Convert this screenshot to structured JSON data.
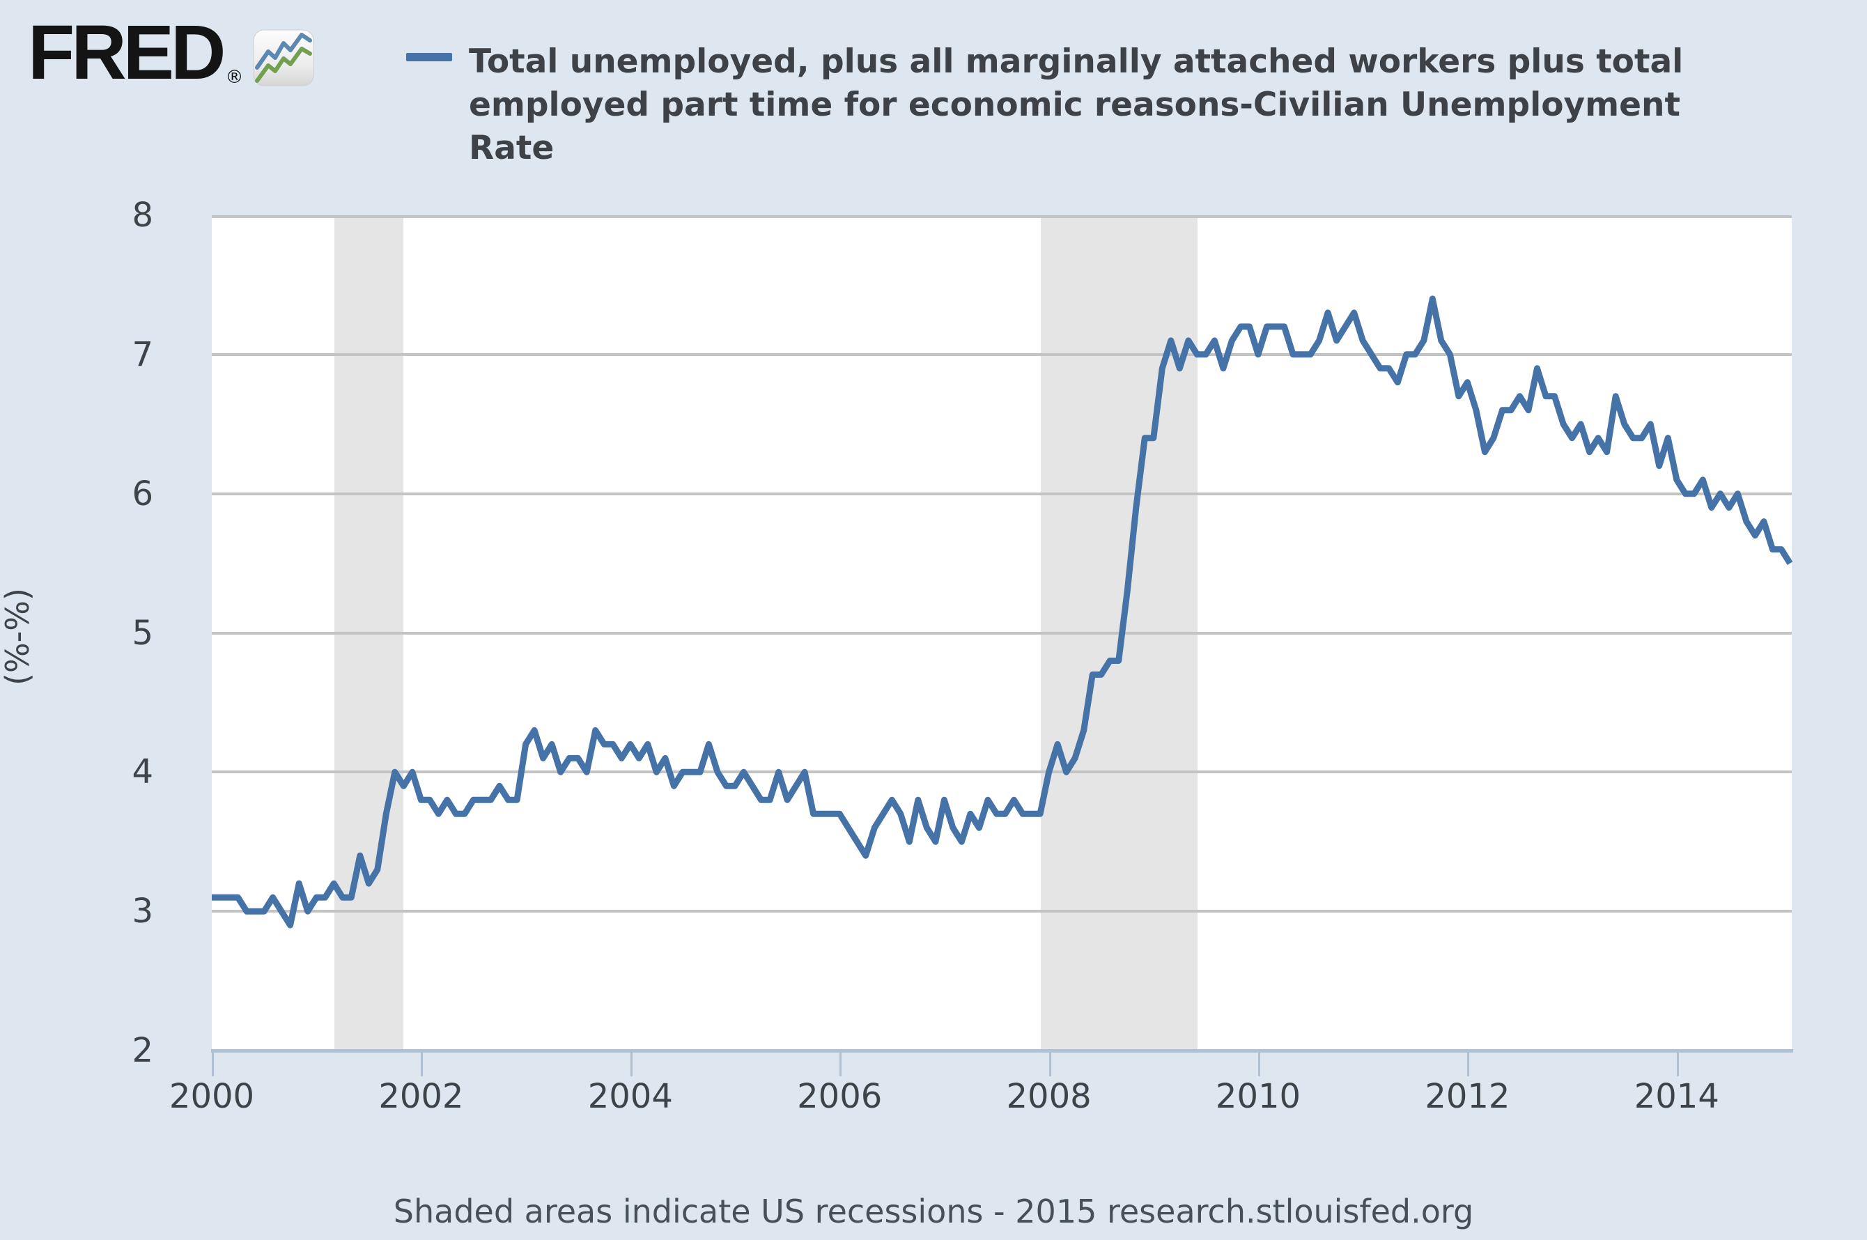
{
  "header": {
    "logo_text": "FRED",
    "registered_mark": "®",
    "logo_icon": "line-chart-icon",
    "legend": {
      "swatch_color": "#4572a7",
      "lines": [
        "Total unemployed, plus all marginally attached workers plus total",
        "employed part time for economic reasons-Civilian Unemployment",
        "Rate"
      ]
    }
  },
  "footer": {
    "text": "Shaded areas indicate US recessions - 2015 research.stlouisfed.org"
  },
  "colors": {
    "page_background": "#dee7ef",
    "plot_background": "#ffffff",
    "recession_band": "#e5e5e5",
    "gridline": "#c3c3c3",
    "axis": "#b0c1d4",
    "series_line": "#4572a7",
    "text_dark": "#3e4145",
    "logo_blue": "#5b87b0",
    "logo_green": "#71a04e"
  },
  "chart_data": {
    "type": "line",
    "title": "Total unemployed, plus all marginally attached workers plus total employed part time for economic reasons-Civilian Unemployment Rate",
    "xlabel": "",
    "ylabel": "(%-%)",
    "frequency": "monthly",
    "start_month": "2000-01",
    "end_month": "2015-02",
    "xlim": [
      2000,
      2015.1
    ],
    "ylim": [
      2,
      8
    ],
    "x_ticks": [
      2000,
      2002,
      2004,
      2006,
      2008,
      2010,
      2012,
      2014
    ],
    "y_ticks": [
      2,
      3,
      4,
      5,
      6,
      7,
      8
    ],
    "grid": true,
    "legend_position": "top",
    "line_width": 9,
    "recession_bands": [
      {
        "start": 2001.17,
        "end": 2001.83
      },
      {
        "start": 2007.92,
        "end": 2009.42
      }
    ],
    "values": [
      3.1,
      3.1,
      3.1,
      3.1,
      3.0,
      3.0,
      3.0,
      3.1,
      3.0,
      2.9,
      3.2,
      3.0,
      3.1,
      3.1,
      3.2,
      3.1,
      3.1,
      3.4,
      3.2,
      3.3,
      3.7,
      4.0,
      3.9,
      4.0,
      3.8,
      3.8,
      3.7,
      3.8,
      3.7,
      3.7,
      3.8,
      3.8,
      3.8,
      3.9,
      3.8,
      3.8,
      4.2,
      4.3,
      4.1,
      4.2,
      4.0,
      4.1,
      4.1,
      4.0,
      4.3,
      4.2,
      4.2,
      4.1,
      4.2,
      4.1,
      4.2,
      4.0,
      4.1,
      3.9,
      4.0,
      4.0,
      4.0,
      4.2,
      4.0,
      3.9,
      3.9,
      4.0,
      3.9,
      3.8,
      3.8,
      4.0,
      3.8,
      3.9,
      4.0,
      3.7,
      3.7,
      3.7,
      3.7,
      3.6,
      3.5,
      3.4,
      3.6,
      3.7,
      3.8,
      3.7,
      3.5,
      3.8,
      3.6,
      3.5,
      3.8,
      3.6,
      3.5,
      3.7,
      3.6,
      3.8,
      3.7,
      3.7,
      3.8,
      3.7,
      3.7,
      3.7,
      4.0,
      4.2,
      4.0,
      4.1,
      4.3,
      4.7,
      4.7,
      4.8,
      4.8,
      5.3,
      5.9,
      6.4,
      6.4,
      6.9,
      7.1,
      6.9,
      7.1,
      7.0,
      7.0,
      7.1,
      6.9,
      7.1,
      7.2,
      7.2,
      7.0,
      7.2,
      7.2,
      7.2,
      7.0,
      7.0,
      7.0,
      7.1,
      7.3,
      7.1,
      7.2,
      7.3,
      7.1,
      7.0,
      6.9,
      6.9,
      6.8,
      7.0,
      7.0,
      7.1,
      7.4,
      7.1,
      7.0,
      6.7,
      6.8,
      6.6,
      6.3,
      6.4,
      6.6,
      6.6,
      6.7,
      6.6,
      6.9,
      6.7,
      6.7,
      6.5,
      6.4,
      6.5,
      6.3,
      6.4,
      6.3,
      6.7,
      6.5,
      6.4,
      6.4,
      6.5,
      6.2,
      6.4,
      6.1,
      6.0,
      6.0,
      6.1,
      5.9,
      6.0,
      5.9,
      6.0,
      5.8,
      5.7,
      5.8,
      5.6,
      5.6,
      5.5
    ]
  }
}
